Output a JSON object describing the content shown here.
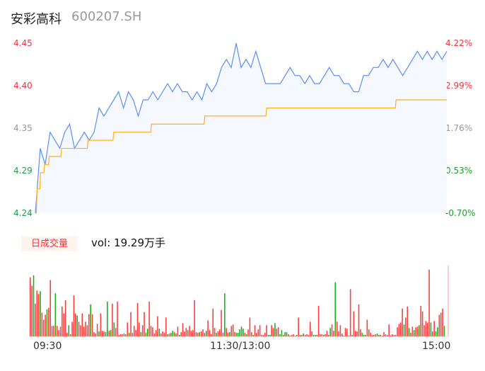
{
  "header": {
    "name": "安彩高科",
    "code": "600207.SH"
  },
  "colors": {
    "price_line": "#5B8FF9",
    "price_fill": "#F5F8FF",
    "avg_line": "#FFB020",
    "up": "#FF3B3B",
    "down": "#1AAD19",
    "neutral_axis": "#999999"
  },
  "vol_panel": {
    "tab_label": "日成交量",
    "vol_text": "vol: 19.29万手"
  },
  "chart_data": {
    "type": "line",
    "y_left_ticks": [
      "4.45",
      "4.40",
      "4.35",
      "4.29",
      "4.24"
    ],
    "y_right_ticks": [
      "4.22%",
      "2.99%",
      "1.76%",
      "0.53%",
      "-0.70%"
    ],
    "x_ticks": [
      "09:30",
      "11:30/13:00",
      "15:00"
    ],
    "ylim": [
      4.24,
      4.45
    ],
    "minutes": 240,
    "price": [
      4.24,
      4.32,
      4.3,
      4.34,
      4.33,
      4.32,
      4.34,
      4.35,
      4.32,
      4.33,
      4.34,
      4.33,
      4.34,
      4.37,
      4.36,
      4.37,
      4.38,
      4.39,
      4.37,
      4.39,
      4.38,
      4.36,
      4.38,
      4.38,
      4.39,
      4.38,
      4.39,
      4.4,
      4.39,
      4.4,
      4.39,
      4.39,
      4.38,
      4.39,
      4.38,
      4.4,
      4.39,
      4.4,
      4.42,
      4.43,
      4.42,
      4.45,
      4.42,
      4.43,
      4.42,
      4.44,
      4.42,
      4.4,
      4.4,
      4.4,
      4.4,
      4.41,
      4.42,
      4.41,
      4.41,
      4.4,
      4.41,
      4.4,
      4.4,
      4.41,
      4.42,
      4.41,
      4.41,
      4.4,
      4.4,
      4.39,
      4.39,
      4.41,
      4.41,
      4.42,
      4.42,
      4.43,
      4.42,
      4.43,
      4.42,
      4.41,
      4.42,
      4.43,
      4.44,
      4.43,
      4.44,
      4.43,
      4.44,
      4.43,
      4.44
    ],
    "avg_steps": [
      [
        0,
        4.24
      ],
      [
        1,
        4.27
      ],
      [
        3,
        4.29
      ],
      [
        5.4,
        4.3
      ],
      [
        8.1,
        4.31
      ],
      [
        15.3,
        4.32
      ],
      [
        30.7,
        4.33
      ],
      [
        45.7,
        4.34
      ],
      [
        67.7,
        4.35
      ],
      [
        98.8,
        4.36
      ],
      [
        134.9,
        4.37
      ],
      [
        210.4,
        4.38
      ],
      [
        240,
        4.38
      ]
    ],
    "volume": "r85 r73 g88 r47 r66 r61 g65 r34 r24 r31 g39 r41 r81 r15 r15 g62 r15 r9 r14 r43 r33 r52 r5 g16 r3 r21 r59 r33 g30 r21 r16 r33 r14 r21 r16 r32 g46 r32 r6 r4 r18 g7 r33 r8 r7 g6 g50 r8 g9 r47 g20 r12 r50 r2 r3 r3 g4 r3 r20 g5 r35 r5 r15 r9 r48 r20 g6 r16 r35 g5 g11 r50 r15 r13 r4 r9 r29 g11 r4 r7 r5 r27 g3 r4 g5 g8 r6 g4 r14 g2 r6 r19 r7 r12 r9 r15 r8 r9 r52 r6 r5 g6 r7 r10 r5 g8 r23 r9 r3 r40 r12 g5 r7 r10 r38 r5 g62 r12 r5 g6 r15 r17 r6 g5 g5 g10 g14 g11 r5 g3 r10 r27 r6 g2 r16 r5 r10 r16 r2 r2 r5 r16 g2 g2 r16 r12 g19 r11 r13 g3 g9 r2 g6 g6 r3 g1 r2 r3 r1 r2 r27 r2 r2 g4 r2 r3 r2 r21 r7 g2 g2 r2 r44 r3 r3 g2 r3 r8 r2 g12 r17 r8 g78 r21 r7 r16 r4 g1 r12 r11 r1 r68 g2 r36 r8 r7 r46 r10 g5 g2 r2 r24 r10 r5 r2 r2 r3 g4 r2 g2 r1 r6 r3 r2 r17 r1 r3 r2 r2 r13 r18 r20 r40 g17 r27 r43 g12 r5 r14 g9 r13 r14 g16 r44 r36 r16 r22 r20 r96 g20 r7 r22 g7 g13 r31 r34 r40 g15"
  }
}
